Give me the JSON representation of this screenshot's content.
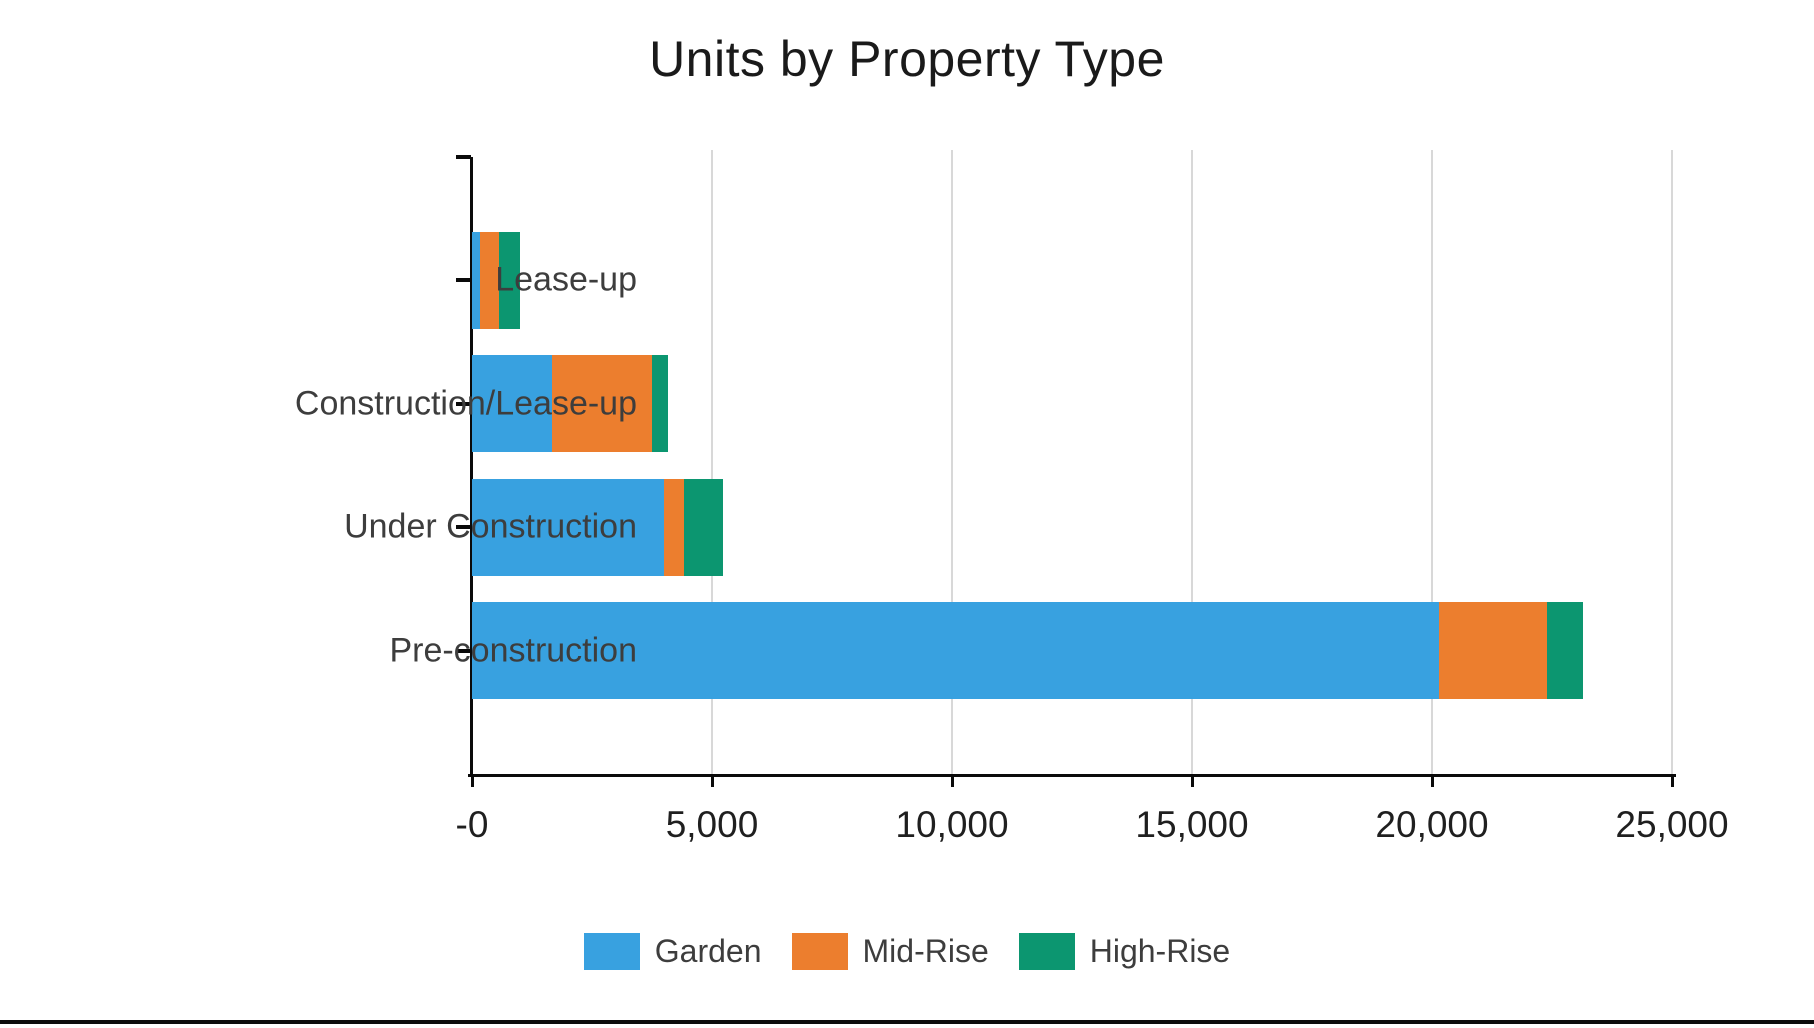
{
  "title": "Units by Property Type",
  "colors": {
    "garden": "#38a1e0",
    "mid_rise": "#ec7e2e",
    "high_rise": "#0c9670",
    "axis": "#0a0a0a",
    "gridline": "#d8d8d8",
    "title_text": "#1a1a1a",
    "label_text": "#3d3d3d"
  },
  "chart_data": {
    "type": "bar",
    "orientation": "horizontal",
    "stacked": true,
    "title": "Units by Property Type",
    "categories": [
      "Lease-up",
      "Construction/Lease-up",
      "Under Construction",
      "Pre-construction"
    ],
    "series": [
      {
        "name": "Garden",
        "color": "#38a1e0",
        "values": [
          170,
          1670,
          4000,
          20150
        ]
      },
      {
        "name": "Mid-Rise",
        "color": "#ec7e2e",
        "values": [
          400,
          2080,
          420,
          2250
        ]
      },
      {
        "name": "High-Rise",
        "color": "#0c9670",
        "values": [
          420,
          330,
          810,
          750
        ]
      }
    ],
    "totals": [
      990,
      4080,
      5230,
      23150
    ],
    "x_axis": {
      "min": 0,
      "max": 25000,
      "tick_values": [
        0,
        5000,
        10000,
        15000,
        20000,
        25000
      ],
      "tick_labels": [
        "-0",
        "5,000",
        "10,000",
        "15,000",
        "20,000",
        "25,000"
      ]
    },
    "grid": "vertical-only",
    "legend_position": "bottom-center"
  }
}
